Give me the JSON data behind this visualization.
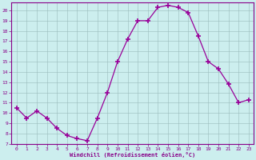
{
  "x": [
    0,
    1,
    2,
    3,
    4,
    5,
    6,
    7,
    8,
    9,
    10,
    11,
    12,
    13,
    14,
    15,
    16,
    17,
    18,
    19,
    20,
    21,
    22,
    23
  ],
  "y": [
    10.5,
    9.5,
    10.2,
    9.5,
    8.5,
    7.8,
    7.5,
    7.3,
    9.5,
    12.0,
    15.0,
    17.2,
    19.0,
    19.0,
    20.3,
    20.5,
    20.3,
    19.8,
    17.5,
    15.0,
    14.3,
    12.8,
    11.0,
    11.3
  ],
  "line_color": "#990099",
  "marker": "+",
  "markersize": 4,
  "markeredgewidth": 1.2,
  "bg_color": "#cceeee",
  "grid_color": "#99bbbb",
  "xlabel": "Windchill (Refroidissement éolien,°C)",
  "ylabel": "",
  "ylim": [
    7,
    20.8
  ],
  "xlim": [
    -0.5,
    23.5
  ],
  "yticks": [
    7,
    8,
    9,
    10,
    11,
    12,
    13,
    14,
    15,
    16,
    17,
    18,
    19,
    20
  ],
  "xticks": [
    0,
    1,
    2,
    3,
    4,
    5,
    6,
    7,
    8,
    9,
    10,
    11,
    12,
    13,
    14,
    15,
    16,
    17,
    18,
    19,
    20,
    21,
    22,
    23
  ],
  "tick_color": "#880088",
  "label_color": "#880088",
  "spine_color": "#880088"
}
